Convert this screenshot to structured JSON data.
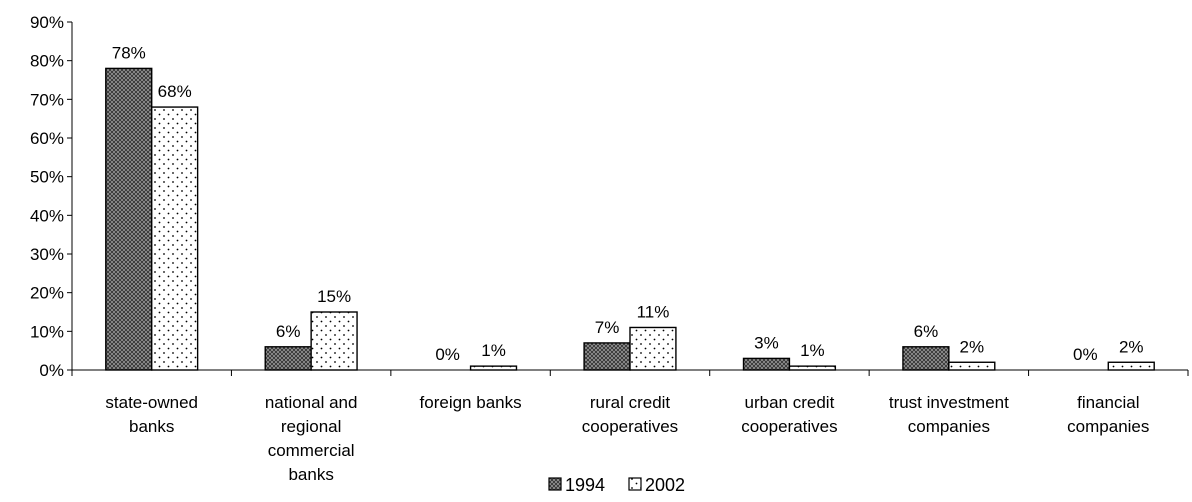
{
  "chart_data": {
    "type": "bar",
    "categories": [
      [
        "state-owned",
        "banks"
      ],
      [
        "national and",
        "regional",
        "commercial",
        "banks"
      ],
      [
        "foreign banks"
      ],
      [
        "rural credit",
        "cooperatives"
      ],
      [
        "urban credit",
        "cooperatives"
      ],
      [
        "trust investment",
        "companies"
      ],
      [
        "financial",
        "companies"
      ]
    ],
    "series": [
      {
        "name": "1994",
        "values": [
          78,
          6,
          0,
          7,
          3,
          6,
          0
        ],
        "labels": [
          "78%",
          "6%",
          "0%",
          "7%",
          "3%",
          "6%",
          "0%"
        ]
      },
      {
        "name": "2002",
        "values": [
          68,
          15,
          1,
          11,
          1,
          2,
          2
        ],
        "labels": [
          "68%",
          "15%",
          "1%",
          "11%",
          "1%",
          "2%",
          "2%"
        ]
      }
    ],
    "ylim": [
      0,
      90
    ],
    "yticks": [
      "0%",
      "10%",
      "20%",
      "30%",
      "40%",
      "50%",
      "60%",
      "70%",
      "80%",
      "90%"
    ],
    "legend_position": "bottom",
    "grid": false
  }
}
